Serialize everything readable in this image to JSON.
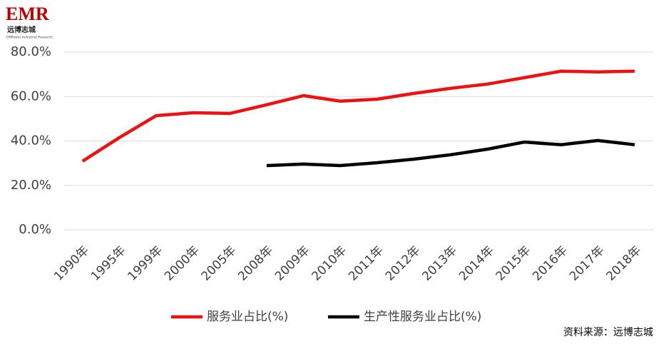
{
  "logo": {
    "mark": "EMR",
    "name": "远博志城",
    "tagline": "EMPower Industrial Research"
  },
  "chart_data": {
    "type": "line",
    "categories": [
      "1990年",
      "1995年",
      "1999年",
      "2000年",
      "2005年",
      "2008年",
      "2009年",
      "2010年",
      "2011年",
      "2012年",
      "2013年",
      "2014年",
      "2015年",
      "2016年",
      "2017年",
      "2018年"
    ],
    "series": [
      {
        "name": "服务业占比(%)",
        "color": "#ee1111",
        "values": [
          30.9,
          41.5,
          51.4,
          52.7,
          52.4,
          56.3,
          60.4,
          57.9,
          58.8,
          61.4,
          63.7,
          65.6,
          68.5,
          71.4,
          71.1,
          71.4
        ]
      },
      {
        "name": "生产性服务业占比(%)",
        "color": "#000000",
        "values": [
          null,
          null,
          null,
          null,
          null,
          28.9,
          29.6,
          28.9,
          30.2,
          31.8,
          33.8,
          36.3,
          39.5,
          38.3,
          40.2,
          38.3
        ]
      }
    ],
    "ylim": [
      0,
      80
    ],
    "yticks": [
      {
        "value": 0,
        "label": "0.0%"
      },
      {
        "value": 20,
        "label": "20.0%"
      },
      {
        "value": 40,
        "label": "40.0%"
      },
      {
        "value": 60,
        "label": "60.0%"
      },
      {
        "value": 80,
        "label": "80.0%"
      }
    ],
    "grid": true,
    "legend": "bottom",
    "source": "资料来源：远博志城"
  }
}
